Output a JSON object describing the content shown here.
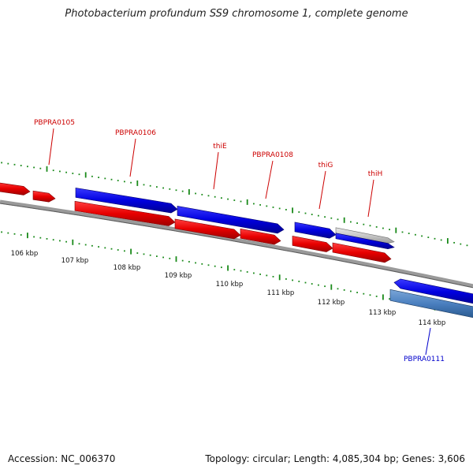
{
  "title": "Photobacterium profundum SS9 chromosome 1, complete genome",
  "footer": {
    "accession": "Accession: NC_006370",
    "topology": "Topology: circular; Length: 4,085,304 bp; Genes: 3,606"
  },
  "colors": {
    "forward_gene": "#0000ee",
    "reverse_gene": "#ee0000",
    "backbone": "#808080",
    "tick": "#1a8a1a",
    "gene_label_red": "#cc0000",
    "gene_label_blue": "#0000cc",
    "pseudo_gene": "#c8c8c8",
    "steelblue_gene": "#4a7fbf"
  },
  "ticks": [
    {
      "label": "106 kbp"
    },
    {
      "label": "107 kbp"
    },
    {
      "label": "108 kbp"
    },
    {
      "label": "109 kbp"
    },
    {
      "label": "110 kbp"
    },
    {
      "label": "111 kbp"
    },
    {
      "label": "112 kbp"
    },
    {
      "label": "113 kbp"
    },
    {
      "label": "114 kbp"
    }
  ],
  "gene_labels": [
    {
      "name": "PBPRA0105",
      "color": "red"
    },
    {
      "name": "PBPRA0106",
      "color": "red"
    },
    {
      "name": "thiE",
      "color": "red"
    },
    {
      "name": "PBPRA0108",
      "color": "red"
    },
    {
      "name": "thiG",
      "color": "red"
    },
    {
      "name": "thiH",
      "color": "red"
    },
    {
      "name": "PBPRA0111",
      "color": "blue"
    }
  ]
}
